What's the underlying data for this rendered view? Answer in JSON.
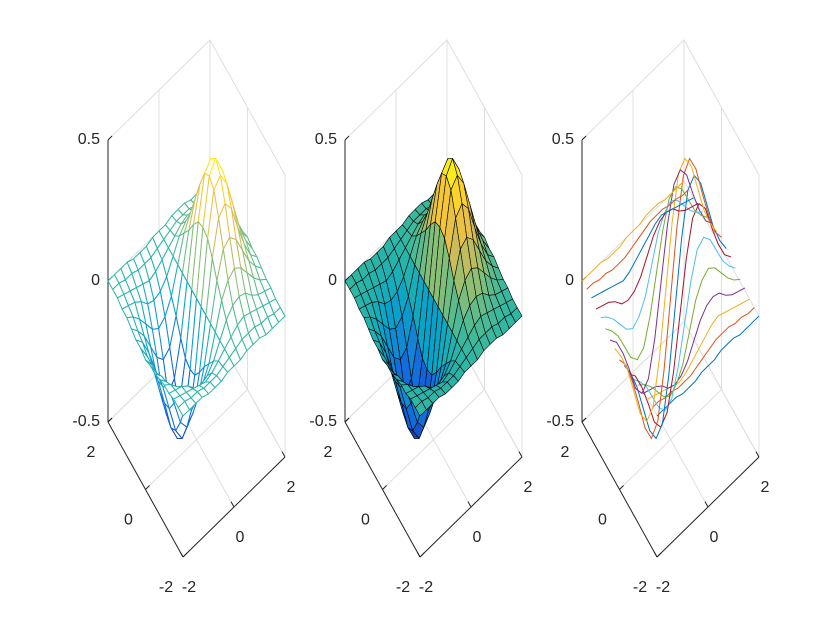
{
  "chart_data": {
    "type": "surface3d",
    "panels": [
      {
        "type": "mesh"
      },
      {
        "type": "surf"
      },
      {
        "type": "waterfall"
      }
    ],
    "x": [
      -2,
      -1.75,
      -1.5,
      -1.25,
      -1,
      -0.75,
      -0.5,
      -0.25,
      0,
      0.25,
      0.5,
      0.75,
      1,
      1.25,
      1.5,
      1.75,
      2
    ],
    "y": [
      -2,
      -1.75,
      -1.5,
      -1.25,
      -1,
      -0.75,
      -0.5,
      -0.25,
      0,
      0.25,
      0.5,
      0.75,
      1,
      1.25,
      1.5,
      1.75,
      2
    ],
    "z": [
      [
        0,
        0,
        0,
        0,
        -0.01,
        -0.01,
        -0.01,
        0,
        0,
        0,
        0.01,
        0.01,
        0.01,
        0,
        0,
        0,
        0
      ],
      [
        0,
        0,
        -0.01,
        -0.01,
        -0.02,
        -0.02,
        -0.02,
        -0.01,
        0,
        0.01,
        0.02,
        0.02,
        0.02,
        0.01,
        0.01,
        0,
        0
      ],
      [
        0,
        -0.01,
        -0.02,
        -0.03,
        -0.04,
        -0.05,
        -0.04,
        -0.02,
        0,
        0.02,
        0.04,
        0.05,
        0.04,
        0.03,
        0.02,
        0.01,
        0
      ],
      [
        -0.01,
        -0.02,
        -0.03,
        -0.05,
        -0.08,
        -0.09,
        -0.08,
        -0.05,
        0,
        0.05,
        0.08,
        0.09,
        0.08,
        0.05,
        0.03,
        0.02,
        0.01
      ],
      [
        -0.01,
        -0.03,
        -0.06,
        -0.1,
        -0.14,
        -0.16,
        -0.14,
        -0.09,
        0,
        0.09,
        0.14,
        0.16,
        0.14,
        0.1,
        0.06,
        0.03,
        0.01
      ],
      [
        -0.02,
        -0.05,
        -0.09,
        -0.15,
        -0.21,
        -0.24,
        -0.22,
        -0.13,
        0,
        0.13,
        0.22,
        0.24,
        0.21,
        0.15,
        0.09,
        0.05,
        0.02
      ],
      [
        -0.03,
        -0.06,
        -0.12,
        -0.2,
        -0.29,
        -0.33,
        -0.3,
        -0.18,
        0,
        0.18,
        0.3,
        0.33,
        0.29,
        0.2,
        0.12,
        0.06,
        0.03
      ],
      [
        -0.03,
        -0.08,
        -0.15,
        -0.25,
        -0.35,
        -0.4,
        -0.37,
        -0.22,
        0,
        0.22,
        0.37,
        0.4,
        0.35,
        0.25,
        0.15,
        0.08,
        0.03
      ],
      [
        -0.04,
        -0.08,
        -0.16,
        -0.26,
        -0.37,
        -0.43,
        -0.39,
        -0.23,
        0,
        0.23,
        0.39,
        0.43,
        0.37,
        0.26,
        0.16,
        0.08,
        0.04
      ],
      [
        -0.03,
        -0.08,
        -0.15,
        -0.25,
        -0.35,
        -0.4,
        -0.37,
        -0.22,
        0,
        0.22,
        0.37,
        0.4,
        0.35,
        0.25,
        0.15,
        0.08,
        0.03
      ],
      [
        -0.03,
        -0.06,
        -0.12,
        -0.2,
        -0.29,
        -0.33,
        -0.3,
        -0.18,
        0,
        0.18,
        0.3,
        0.33,
        0.29,
        0.2,
        0.12,
        0.06,
        0.03
      ],
      [
        -0.02,
        -0.05,
        -0.09,
        -0.15,
        -0.21,
        -0.24,
        -0.22,
        -0.13,
        0,
        0.13,
        0.22,
        0.24,
        0.21,
        0.15,
        0.09,
        0.05,
        0.02
      ],
      [
        -0.01,
        -0.03,
        -0.06,
        -0.1,
        -0.14,
        -0.16,
        -0.14,
        -0.09,
        0,
        0.09,
        0.14,
        0.16,
        0.14,
        0.1,
        0.06,
        0.03,
        0.01
      ],
      [
        -0.01,
        -0.02,
        -0.03,
        -0.05,
        -0.08,
        -0.09,
        -0.08,
        -0.05,
        0,
        0.05,
        0.08,
        0.09,
        0.08,
        0.05,
        0.03,
        0.02,
        0.01
      ],
      [
        0,
        -0.01,
        -0.02,
        -0.03,
        -0.04,
        -0.05,
        -0.04,
        -0.02,
        0,
        0.02,
        0.04,
        0.05,
        0.04,
        0.03,
        0.02,
        0.01,
        0
      ],
      [
        0,
        0,
        -0.01,
        -0.01,
        -0.02,
        -0.02,
        -0.02,
        -0.01,
        0,
        0.01,
        0.02,
        0.02,
        0.02,
        0.01,
        0.01,
        0,
        0
      ],
      [
        0,
        0,
        0,
        0,
        -0.01,
        -0.01,
        -0.01,
        0,
        0,
        0,
        0.01,
        0.01,
        0.01,
        0,
        0,
        0,
        0
      ]
    ],
    "xlim": [
      -2,
      2
    ],
    "ylim": [
      -2,
      2
    ],
    "zlim": [
      -0.5,
      0.5
    ],
    "xticks": [
      -2,
      0,
      2
    ],
    "yticks": [
      -2,
      0,
      2
    ],
    "zticks": [
      -0.5,
      0,
      0.5
    ],
    "grid": true,
    "colormap": [
      "#352a87",
      "#0f5cdd",
      "#1481d6",
      "#06a4ca",
      "#2eb7a4",
      "#87bf77",
      "#d1bb59",
      "#fec832",
      "#f9fb0e"
    ],
    "line_colors": [
      "#0072bd",
      "#d95319",
      "#edb120",
      "#7e2f8e",
      "#77ac30",
      "#4dbeee",
      "#a2142f"
    ]
  }
}
